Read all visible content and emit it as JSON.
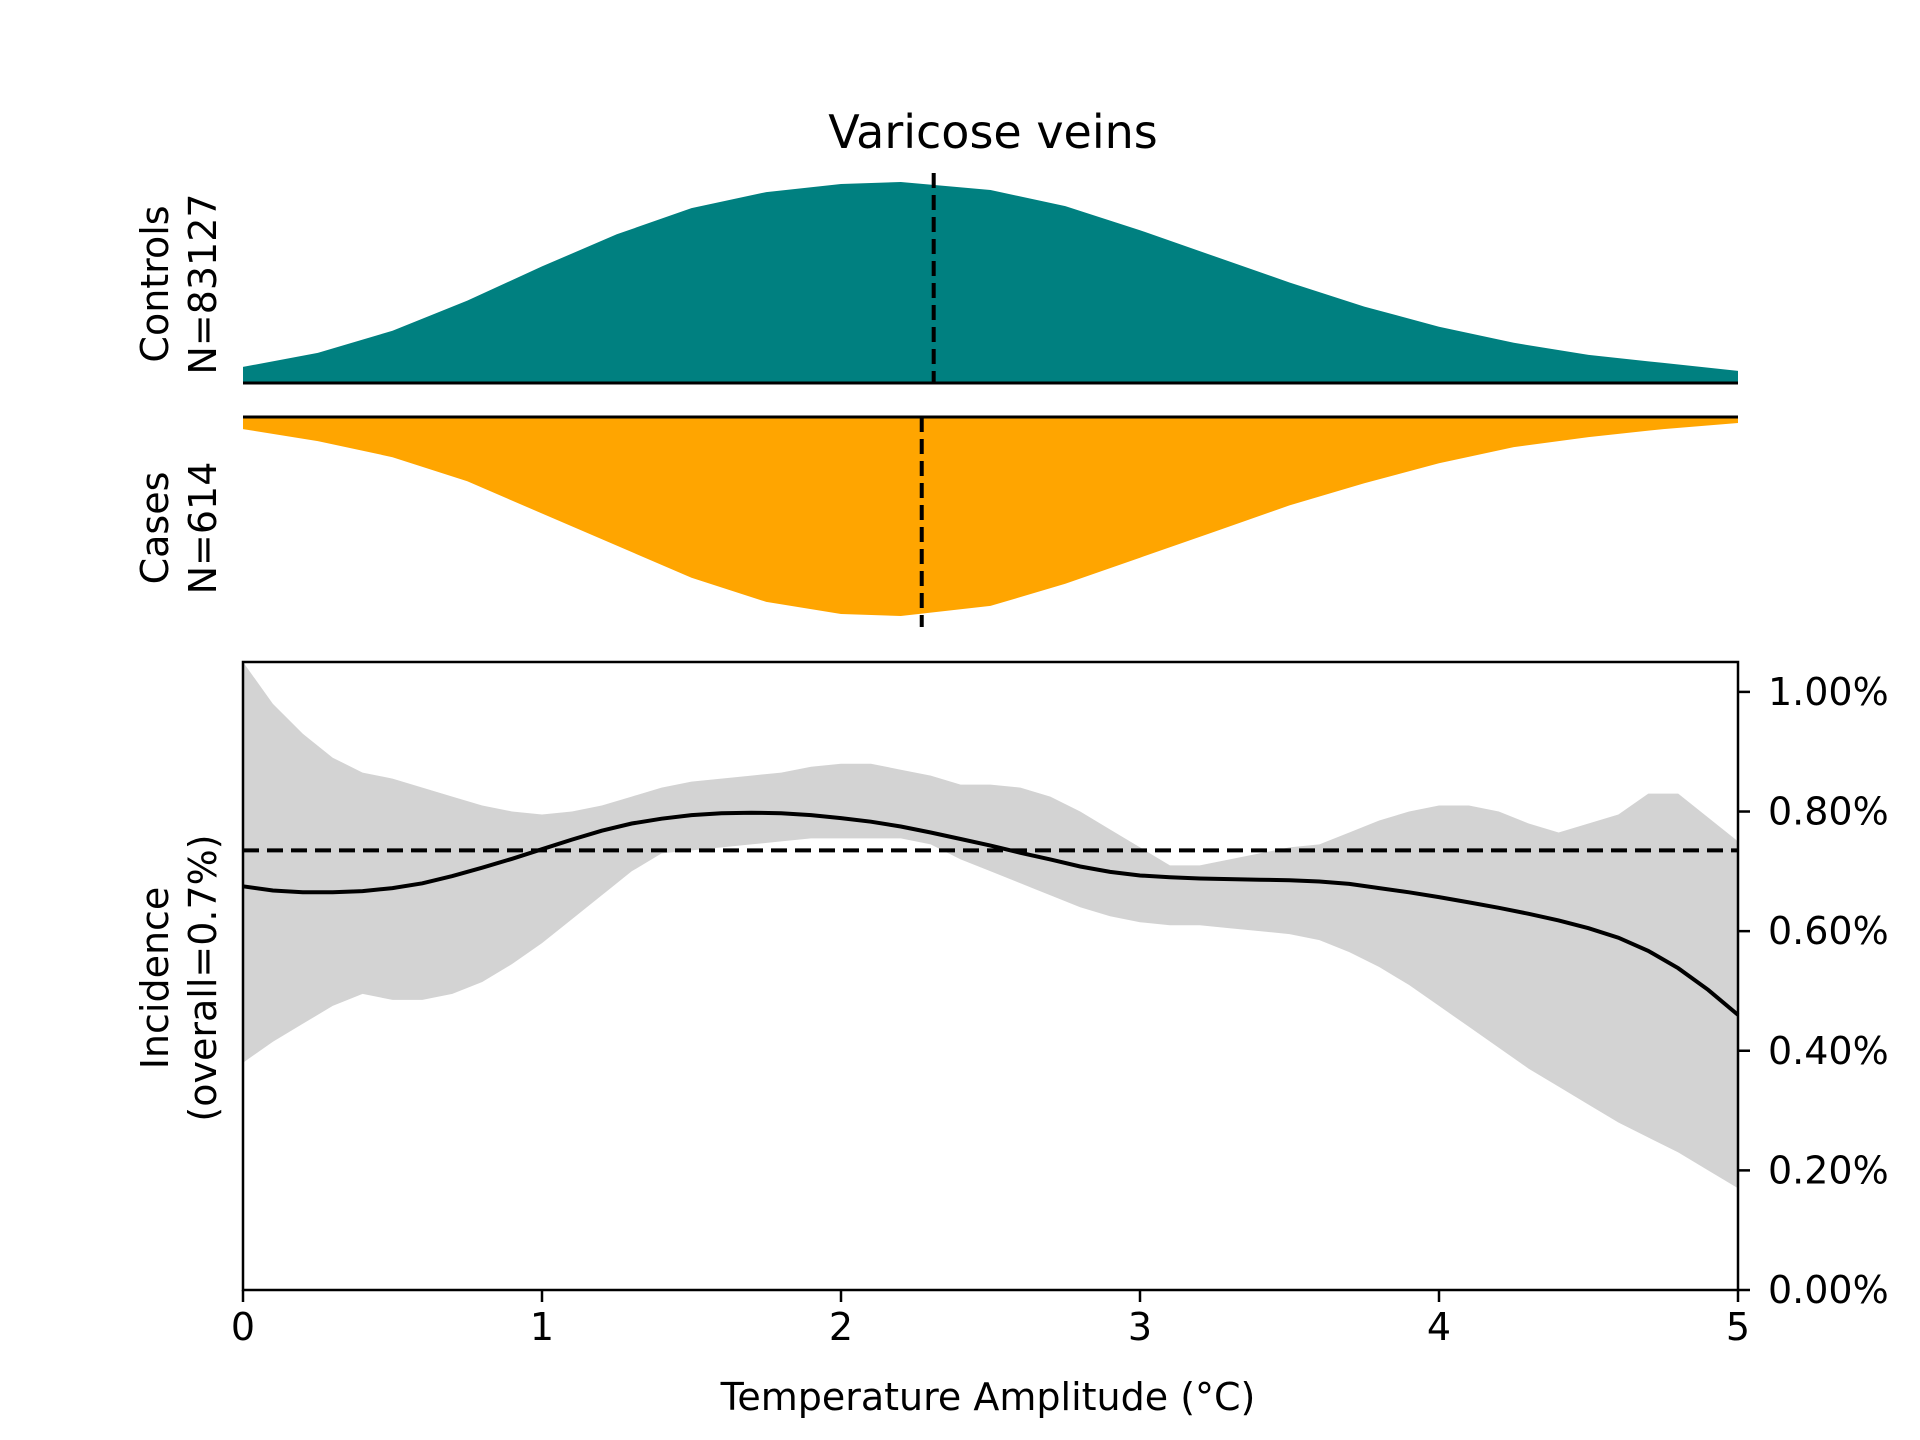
{
  "chart_data": {
    "type": "area",
    "title": "Varicose veins",
    "colors": {
      "controls": "#008080",
      "cases": "#FFA500",
      "ci_band": "#D3D3D3",
      "line": "#000000"
    },
    "controls": {
      "label_line1": "Controls",
      "label_line2": "N=83127",
      "median": 2.31,
      "density": [
        [
          0,
          0.08
        ],
        [
          0.25,
          0.15
        ],
        [
          0.5,
          0.26
        ],
        [
          0.75,
          0.41
        ],
        [
          1.0,
          0.58
        ],
        [
          1.25,
          0.74
        ],
        [
          1.5,
          0.87
        ],
        [
          1.75,
          0.95
        ],
        [
          2.0,
          0.99
        ],
        [
          2.2,
          1.0
        ],
        [
          2.5,
          0.96
        ],
        [
          2.75,
          0.88
        ],
        [
          3.0,
          0.76
        ],
        [
          3.25,
          0.63
        ],
        [
          3.5,
          0.5
        ],
        [
          3.75,
          0.38
        ],
        [
          4.0,
          0.28
        ],
        [
          4.25,
          0.2
        ],
        [
          4.5,
          0.14
        ],
        [
          4.75,
          0.1
        ],
        [
          5.0,
          0.06
        ]
      ]
    },
    "cases": {
      "label_line1": "Cases",
      "label_line2": "N=614",
      "median": 2.27,
      "density": [
        [
          0,
          0.06
        ],
        [
          0.25,
          0.12
        ],
        [
          0.5,
          0.2
        ],
        [
          0.75,
          0.32
        ],
        [
          1.0,
          0.48
        ],
        [
          1.25,
          0.64
        ],
        [
          1.5,
          0.8
        ],
        [
          1.75,
          0.92
        ],
        [
          2.0,
          0.98
        ],
        [
          2.2,
          0.99
        ],
        [
          2.5,
          0.94
        ],
        [
          2.75,
          0.83
        ],
        [
          3.0,
          0.7
        ],
        [
          3.25,
          0.57
        ],
        [
          3.5,
          0.44
        ],
        [
          3.75,
          0.33
        ],
        [
          4.0,
          0.23
        ],
        [
          4.25,
          0.15
        ],
        [
          4.5,
          0.1
        ],
        [
          4.75,
          0.06
        ],
        [
          5.0,
          0.03
        ]
      ]
    },
    "incidence": {
      "ylabel_line1": "Incidence",
      "ylabel_line2": "(overall=0.7%)",
      "xlabel": "Temperature Amplitude (°C)",
      "xlim": [
        0,
        5
      ],
      "ylim": [
        0,
        1.05
      ],
      "overall": 0.735,
      "x_ticks": [
        "0",
        "1",
        "2",
        "3",
        "4",
        "5"
      ],
      "y_ticks": [
        "0.00%",
        "0.20%",
        "0.40%",
        "0.60%",
        "0.80%",
        "1.00%"
      ],
      "x": [
        0,
        0.1,
        0.2,
        0.3,
        0.4,
        0.5,
        0.6,
        0.7,
        0.8,
        0.9,
        1.0,
        1.1,
        1.2,
        1.3,
        1.4,
        1.5,
        1.6,
        1.7,
        1.8,
        1.9,
        2.0,
        2.1,
        2.2,
        2.3,
        2.4,
        2.5,
        2.6,
        2.7,
        2.8,
        2.9,
        3.0,
        3.1,
        3.2,
        3.3,
        3.4,
        3.5,
        3.6,
        3.7,
        3.8,
        3.9,
        4.0,
        4.1,
        4.2,
        4.3,
        4.4,
        4.5,
        4.6,
        4.7,
        4.8,
        4.9,
        5.0
      ],
      "mean": [
        0.675,
        0.668,
        0.665,
        0.665,
        0.667,
        0.672,
        0.68,
        0.692,
        0.706,
        0.721,
        0.737,
        0.753,
        0.768,
        0.78,
        0.788,
        0.794,
        0.797,
        0.798,
        0.797,
        0.794,
        0.789,
        0.783,
        0.775,
        0.765,
        0.754,
        0.743,
        0.731,
        0.72,
        0.708,
        0.699,
        0.693,
        0.69,
        0.688,
        0.687,
        0.686,
        0.685,
        0.683,
        0.679,
        0.672,
        0.665,
        0.657,
        0.648,
        0.639,
        0.629,
        0.618,
        0.605,
        0.589,
        0.567,
        0.538,
        0.502,
        0.46
      ],
      "upper": [
        1.05,
        0.98,
        0.93,
        0.89,
        0.865,
        0.855,
        0.84,
        0.825,
        0.81,
        0.8,
        0.795,
        0.8,
        0.81,
        0.825,
        0.84,
        0.85,
        0.855,
        0.86,
        0.865,
        0.875,
        0.88,
        0.88,
        0.87,
        0.86,
        0.845,
        0.845,
        0.84,
        0.825,
        0.8,
        0.77,
        0.74,
        0.71,
        0.71,
        0.72,
        0.73,
        0.74,
        0.745,
        0.765,
        0.785,
        0.8,
        0.81,
        0.81,
        0.8,
        0.78,
        0.765,
        0.78,
        0.795,
        0.83,
        0.83,
        0.79,
        0.75
      ],
      "lower": [
        0.38,
        0.415,
        0.445,
        0.475,
        0.495,
        0.485,
        0.485,
        0.495,
        0.515,
        0.545,
        0.58,
        0.62,
        0.66,
        0.7,
        0.73,
        0.735,
        0.74,
        0.745,
        0.75,
        0.755,
        0.755,
        0.755,
        0.755,
        0.745,
        0.72,
        0.7,
        0.68,
        0.66,
        0.64,
        0.625,
        0.615,
        0.61,
        0.61,
        0.605,
        0.6,
        0.595,
        0.585,
        0.565,
        0.54,
        0.51,
        0.475,
        0.44,
        0.405,
        0.37,
        0.34,
        0.31,
        0.28,
        0.255,
        0.23,
        0.2,
        0.17
      ]
    }
  }
}
